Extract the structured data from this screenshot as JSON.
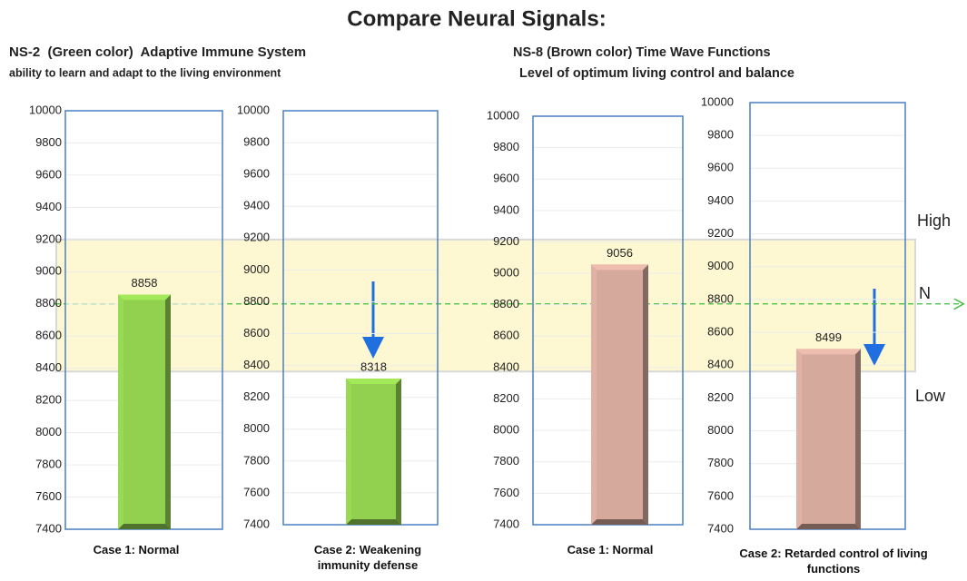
{
  "title": "Compare Neural Signals:",
  "groups": [
    {
      "title": "NS-2  (Green color)  Adaptive Immune System",
      "subtitle": "ability to learn and adapt to the living environment"
    },
    {
      "title": "NS-8 (Brown color) Time Wave Functions",
      "subtitle": " Level of optimum living control and balance"
    }
  ],
  "zone_labels": [
    "High",
    "N",
    "Low"
  ],
  "normal_band": [
    8380,
    9200
  ],
  "n_level": 8800,
  "chart_data": [
    {
      "type": "bar",
      "categories": [
        "Case 1: Normal"
      ],
      "values": [
        8858
      ],
      "color": "#92d050",
      "ylim": [
        7400,
        10000
      ],
      "yticks": [
        7400,
        7600,
        7800,
        8000,
        8200,
        8400,
        8600,
        8800,
        9000,
        9200,
        9400,
        9600,
        9800,
        10000
      ],
      "grid": true
    },
    {
      "type": "bar",
      "categories": [
        "Case 2: Weakening immunity defense"
      ],
      "values": [
        8318
      ],
      "color": "#92d050",
      "ylim": [
        7400,
        10000
      ],
      "yticks": [
        7400,
        7600,
        7800,
        8000,
        8200,
        8400,
        8600,
        8800,
        9000,
        9200,
        9400,
        9600,
        9800,
        10000
      ],
      "grid": true
    },
    {
      "type": "bar",
      "categories": [
        "Case 1: Normal"
      ],
      "values": [
        9056
      ],
      "color": "#d5a99c",
      "ylim": [
        7400,
        10000
      ],
      "yticks": [
        7400,
        7600,
        7800,
        8000,
        8200,
        8400,
        8600,
        8800,
        9000,
        9200,
        9400,
        9600,
        9800,
        10000
      ],
      "grid": true
    },
    {
      "type": "bar",
      "categories": [
        "Case 2: Retarded control of living functions"
      ],
      "values": [
        8499
      ],
      "color": "#d5a99c",
      "ylim": [
        7400,
        10000
      ],
      "yticks": [
        7400,
        7600,
        7800,
        8000,
        8200,
        8400,
        8600,
        8800,
        9000,
        9200,
        9400,
        9600,
        9800,
        10000
      ],
      "grid": true
    }
  ]
}
